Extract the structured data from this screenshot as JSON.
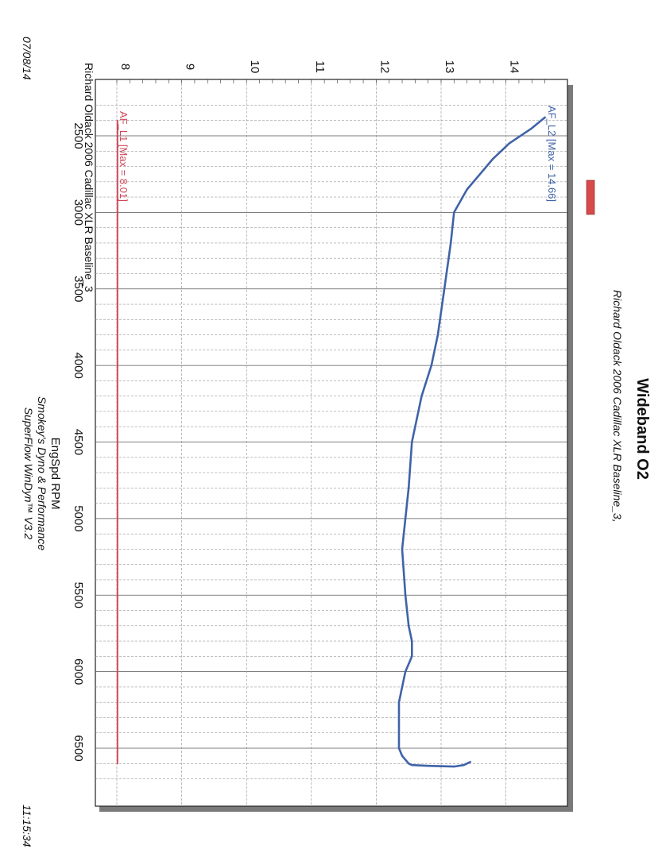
{
  "header": {
    "title": "Wideband O2",
    "subtitle": "Richard Oldack 2006 Cadillac XLR Baseline_3,",
    "plot_label": "Richard Oldack 2006 Cadillac XLR Baseline_3"
  },
  "footer": {
    "xlabel": "EngSpd RPM",
    "shop": "Smokey's Dyno & Performance",
    "software": "SuperFlow WinDyn™ V3.2",
    "date": "07/08/14",
    "time": "11:15:34"
  },
  "chart_data": {
    "type": "line",
    "title": "Wideband O2",
    "xlabel": "EngSpd RPM",
    "ylabel": "",
    "xlim": [
      2250,
      6800
    ],
    "ylim": [
      7.6,
      14.6
    ],
    "x_ticks": [
      2500,
      3000,
      3500,
      4000,
      4500,
      5000,
      5500,
      6000,
      6500
    ],
    "y_ticks": [
      8,
      9,
      10,
      11,
      12,
      13,
      14
    ],
    "grid": true,
    "legend": "inline",
    "colors": {
      "af_l1": "#d0485a",
      "af_l2": "#3f63a8",
      "swatch": "#d84a4a"
    },
    "series": [
      {
        "name": "AF_L1 [Max = 8.01]",
        "x": [
          2400,
          6600
        ],
        "y": [
          8.01,
          8.01
        ]
      },
      {
        "name": "AF_L2 [Max = 14.66]",
        "x": [
          2380,
          2450,
          2550,
          2650,
          2750,
          2850,
          3000,
          3200,
          3500,
          3800,
          4000,
          4200,
          4500,
          4800,
          5000,
          5200,
          5500,
          5700,
          5800,
          5900,
          6000,
          6100,
          6200,
          6300,
          6400,
          6500,
          6550,
          6600,
          6610,
          6615,
          6620,
          6610,
          6590
        ],
        "y": [
          14.6,
          14.4,
          14.05,
          13.8,
          13.6,
          13.4,
          13.2,
          13.15,
          13.05,
          12.95,
          12.85,
          12.7,
          12.55,
          12.5,
          12.45,
          12.4,
          12.45,
          12.5,
          12.55,
          12.55,
          12.45,
          12.4,
          12.35,
          12.35,
          12.35,
          12.35,
          12.4,
          12.5,
          12.55,
          12.8,
          13.2,
          13.35,
          13.45
        ]
      }
    ]
  }
}
